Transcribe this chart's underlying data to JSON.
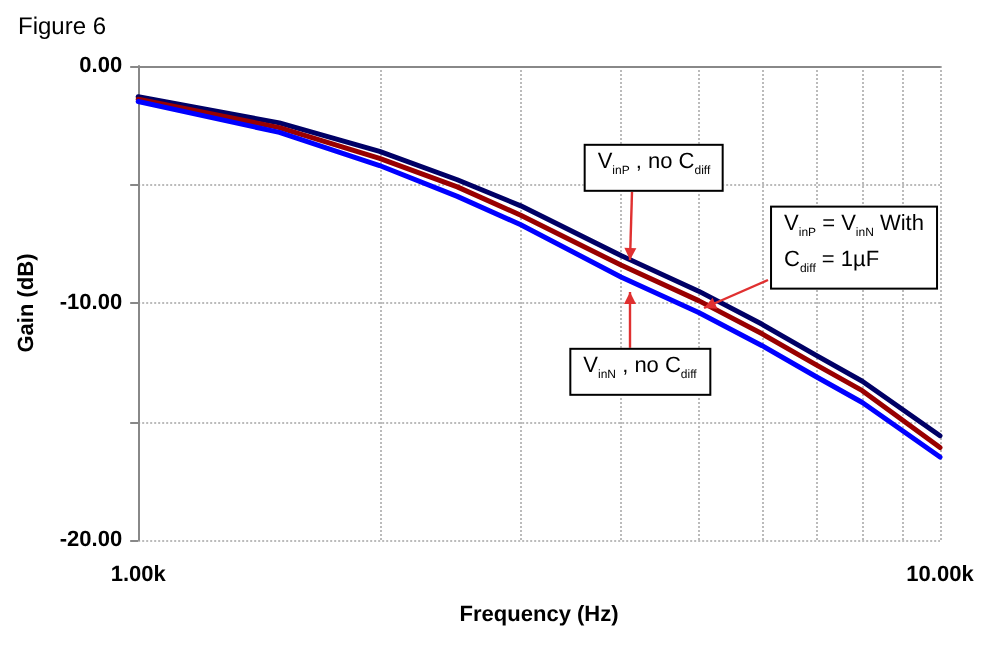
{
  "chart_data": {
    "type": "line",
    "title": "Figure 6",
    "xlabel": "Frequency (Hz)",
    "ylabel": "Gain (dB)",
    "log": "x",
    "grid": true,
    "marker": "none",
    "line_style": "solid",
    "x": [
      1000,
      1500,
      2000,
      2500,
      3000,
      4000,
      5000,
      6000,
      7000,
      8000,
      10000
    ],
    "series": [
      {
        "color": "#000066",
        "values": [
          -1.3,
          -2.4,
          -3.6,
          -4.8,
          -5.9,
          -8.0,
          -9.5,
          -10.9,
          -12.2,
          -13.3,
          -15.6
        ]
      },
      {
        "color": "#990000",
        "values": [
          -1.4,
          -2.6,
          -3.9,
          -5.1,
          -6.3,
          -8.4,
          -9.9,
          -11.3,
          -12.6,
          -13.7,
          -16.1
        ]
      },
      {
        "color": "#0000ff",
        "values": [
          -1.5,
          -2.8,
          -4.2,
          -5.5,
          -6.7,
          -8.9,
          -10.4,
          -11.8,
          -13.1,
          -14.2,
          -16.5
        ]
      }
    ],
    "xlim": [
      1000,
      10000
    ],
    "xticks": [
      {
        "value": 1000,
        "label": "1.00k"
      },
      {
        "value": 2000,
        "label": null
      },
      {
        "value": 3000,
        "label": null
      },
      {
        "value": 4000,
        "label": null
      },
      {
        "value": 5000,
        "label": null
      },
      {
        "value": 6000,
        "label": null
      },
      {
        "value": 7000,
        "label": null
      },
      {
        "value": 8000,
        "label": null
      },
      {
        "value": 9000,
        "label": null
      },
      {
        "value": 10000,
        "label": "10.00k"
      }
    ],
    "ylim": [
      -20,
      0
    ],
    "yticks": [
      {
        "value": -20,
        "label": "-20.00"
      },
      {
        "value": -15,
        "label": null
      },
      {
        "value": -10,
        "label": "-10.00"
      },
      {
        "value": -5,
        "label": null
      },
      {
        "value": 0,
        "label": "0.00"
      }
    ],
    "annotations": [
      "V$_{inP}$ , no C$_{diff}$",
      "V$_{inP}$ = V$_{inN}$ With\nC$_{diff}$ = 1µF",
      "V$_{inN}$ , no C$_{diff}$"
    ]
  }
}
